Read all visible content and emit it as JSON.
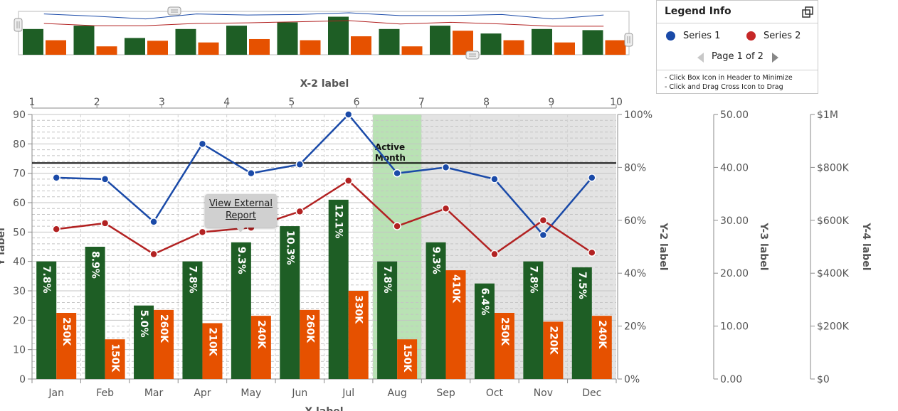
{
  "chart_data": {
    "type": "bar",
    "categories": [
      "Jan",
      "Feb",
      "Mar",
      "Apr",
      "May",
      "Jun",
      "Jul",
      "Aug",
      "Sep",
      "Oct",
      "Nov",
      "Dec"
    ],
    "bars": [
      {
        "values": [
          40,
          45,
          25,
          40,
          46.5,
          52,
          61,
          40,
          46.5,
          32.5,
          40,
          38
        ],
        "labels": [
          "7.8%",
          "8.9%",
          "5.0%",
          "7.8%",
          "9.3%",
          "10.3%",
          "12.1%",
          "7.8%",
          "9.3%",
          "6.4%",
          "7.8%",
          "7.5%"
        ],
        "color": "#1e5e25"
      },
      {
        "values": [
          22.5,
          13.5,
          23.5,
          19,
          21.5,
          23.5,
          30,
          13.5,
          37,
          22.5,
          19.5,
          21.5
        ],
        "labels": [
          "250K",
          "150K",
          "260K",
          "210K",
          "240K",
          "260K",
          "330K",
          "150K",
          "410K",
          "250K",
          "220K",
          "240K"
        ],
        "color": "#e65100"
      }
    ],
    "series": [
      {
        "name": "Series 1",
        "color": "#1a4aa8",
        "values": [
          68.5,
          68,
          53.5,
          80,
          70,
          73,
          90,
          70,
          72,
          68,
          49,
          68.5
        ]
      },
      {
        "name": "Series 2",
        "color": "#b22222",
        "values": [
          51,
          53,
          42.5,
          50,
          51.5,
          57,
          67.5,
          52,
          58,
          42.5,
          54,
          43
        ]
      }
    ],
    "ylabel": "Y label",
    "ylim": [
      0,
      90
    ],
    "yticks": [
      0,
      10,
      20,
      30,
      40,
      50,
      60,
      70,
      80,
      90
    ],
    "xlabel": "X label",
    "x2label": "X-2 label",
    "x2ticks": [
      "1",
      "2",
      "3",
      "4",
      "5",
      "6",
      "7",
      "8",
      "9",
      "10"
    ],
    "y2label": "Y-2 label",
    "y2ticks": [
      "0%",
      "20%",
      "40%",
      "60%",
      "80%",
      "100%"
    ],
    "y3label": "Y-3 label",
    "y3ticks": [
      "0.00",
      "10.00",
      "20.00",
      "30.00",
      "40.00",
      "50.00"
    ],
    "y4label": "Y-4 label",
    "y4ticks": [
      "$0",
      "$200K",
      "$400K",
      "$600K",
      "$800K",
      "$1M"
    ],
    "reference_line": 73.5,
    "active_month": "Aug",
    "active_label": [
      "Active",
      "Month"
    ],
    "shaded_from": "Sep",
    "grid": true
  },
  "navigator": {
    "series1": [
      73,
      69,
      64,
      73,
      71,
      72,
      75,
      70,
      70,
      72,
      64,
      71
    ],
    "series2": [
      56,
      52,
      52,
      56,
      57,
      59,
      61,
      55,
      58,
      55,
      51,
      51
    ],
    "bars": [
      46,
      52,
      30,
      46,
      52,
      58,
      68,
      46,
      52,
      38,
      46,
      44
    ],
    "bars2": [
      26,
      15,
      25,
      22,
      28,
      26,
      33,
      15,
      43,
      26,
      22,
      26
    ]
  },
  "legend": {
    "title": "Legend Info",
    "series1_label": "Series 1",
    "series2_label": "Series 2",
    "series1_color": "#1a4aa8",
    "series2_color": "#c62828",
    "pager": "Page 1 of 2",
    "note1": "- Click Box Icon in Header to Minimize",
    "note2": "- Click and Drag Cross Icon to Drag"
  },
  "tooltip": {
    "line1": "View External",
    "line2": "Report"
  }
}
